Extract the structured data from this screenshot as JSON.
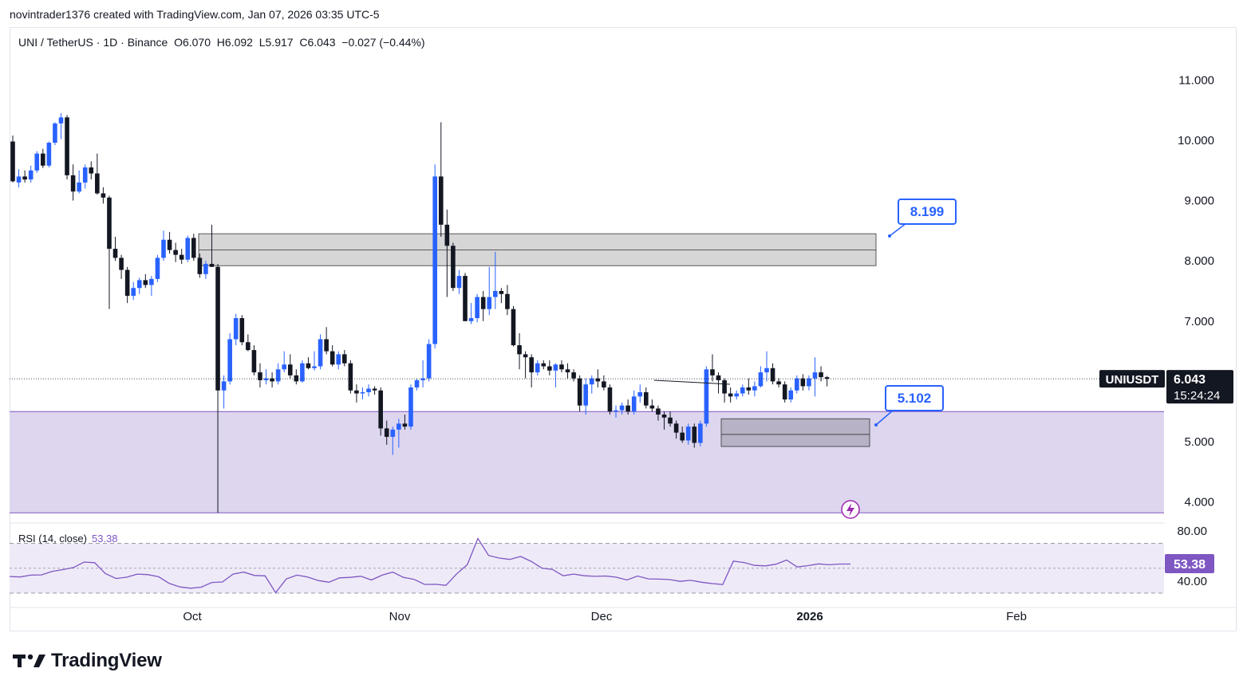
{
  "header": {
    "credit": "novintrader1376 created with TradingView.com, Jan 07, 2026 03:35 UTC-5"
  },
  "symbol": {
    "pair": "UNI / TetherUS",
    "interval": "1D",
    "exchange": "Binance",
    "open": "O6.070",
    "high": "H6.092",
    "low": "L5.917",
    "close": "C6.043",
    "change": "−0.027 (−0.44%)"
  },
  "price_axis": {
    "ticks": [
      "11.000",
      "10.000",
      "9.000",
      "8.000",
      "7.000",
      "5.000",
      "4.000"
    ]
  },
  "last_price": {
    "ticker": "UNIUSDT",
    "price": "6.043",
    "countdown": "15:24:24"
  },
  "annotations": {
    "upper_target": "8.199",
    "lower_target": "5.102"
  },
  "rsi": {
    "label": "RSI (14, close)",
    "value": "53.38",
    "ticks": [
      "80.00",
      "40.00"
    ],
    "values": [
      43.4,
      43.0,
      44.5,
      44.7,
      47.5,
      48.9,
      50.6,
      55.0,
      54.5,
      45.7,
      41.8,
      42.8,
      45.3,
      44.9,
      43.2,
      37.8,
      35.0,
      34.0,
      34.8,
      38.6,
      39.0,
      45.3,
      46.9,
      44.2,
      43.9,
      30.4,
      41.4,
      44.5,
      43.0,
      40.1,
      38.8,
      42.3,
      42.7,
      43.6,
      40.6,
      44.5,
      46.9,
      42.7,
      41.1,
      37.0,
      37.1,
      36.3,
      45.5,
      52.9,
      74.0,
      60.3,
      58.2,
      57.1,
      59.5,
      55.6,
      50.1,
      49.1,
      44.0,
      45.3,
      44.0,
      43.5,
      43.8,
      42.8,
      40.6,
      43.8,
      41.5,
      41.3,
      40.9,
      39.5,
      40.3,
      38.8,
      37.7,
      36.9,
      55.8,
      54.6,
      52.3,
      51.9,
      53.3,
      56.6,
      51.0,
      52.1,
      53.5,
      52.8,
      53.4,
      53.38
    ],
    "color": "#7e57c2"
  },
  "time_axis": {
    "labels": [
      "Oct",
      "Nov",
      "Dec",
      "2026",
      "Feb"
    ]
  },
  "colors": {
    "up": "#2962ff",
    "down": "#131722",
    "zone": "#d1c4e9",
    "rsi_line": "#7e57c2",
    "box": "#b2b5be"
  },
  "chart_data": {
    "type": "candlestick",
    "title": "UNI / TetherUS · 1D · Binance",
    "ylim": [
      3.6,
      11.6
    ],
    "y_ticks": [
      4,
      5,
      7,
      8,
      9,
      10,
      11
    ],
    "x_labels": [
      "Oct",
      "Nov",
      "Dec",
      "2026",
      "Feb"
    ],
    "candles": [
      {
        "o": 9.98,
        "h": 10.08,
        "l": 9.3,
        "c": 9.32
      },
      {
        "o": 9.3,
        "h": 9.52,
        "l": 9.22,
        "c": 9.4
      },
      {
        "o": 9.4,
        "h": 9.5,
        "l": 9.3,
        "c": 9.35
      },
      {
        "o": 9.35,
        "h": 9.58,
        "l": 9.3,
        "c": 9.5
      },
      {
        "o": 9.5,
        "h": 9.82,
        "l": 9.46,
        "c": 9.78
      },
      {
        "o": 9.78,
        "h": 9.86,
        "l": 9.54,
        "c": 9.58
      },
      {
        "o": 9.58,
        "h": 9.98,
        "l": 9.55,
        "c": 9.96
      },
      {
        "o": 9.96,
        "h": 10.3,
        "l": 9.92,
        "c": 10.28
      },
      {
        "o": 10.28,
        "h": 10.45,
        "l": 10.02,
        "c": 10.38
      },
      {
        "o": 10.38,
        "h": 10.42,
        "l": 9.35,
        "c": 9.42
      },
      {
        "o": 9.42,
        "h": 9.6,
        "l": 9.0,
        "c": 9.15
      },
      {
        "o": 9.15,
        "h": 9.5,
        "l": 9.12,
        "c": 9.3
      },
      {
        "o": 9.3,
        "h": 9.6,
        "l": 9.2,
        "c": 9.55
      },
      {
        "o": 9.55,
        "h": 9.65,
        "l": 9.35,
        "c": 9.45
      },
      {
        "o": 9.45,
        "h": 9.78,
        "l": 9.1,
        "c": 9.12
      },
      {
        "o": 9.12,
        "h": 9.22,
        "l": 8.95,
        "c": 9.05
      },
      {
        "o": 9.05,
        "h": 9.08,
        "l": 7.2,
        "c": 8.2
      },
      {
        "o": 8.2,
        "h": 8.4,
        "l": 8.0,
        "c": 8.05
      },
      {
        "o": 8.05,
        "h": 8.1,
        "l": 7.7,
        "c": 7.85
      },
      {
        "o": 7.85,
        "h": 7.9,
        "l": 7.3,
        "c": 7.42
      },
      {
        "o": 7.42,
        "h": 7.65,
        "l": 7.35,
        "c": 7.55
      },
      {
        "o": 7.55,
        "h": 7.72,
        "l": 7.45,
        "c": 7.68
      },
      {
        "o": 7.68,
        "h": 7.78,
        "l": 7.55,
        "c": 7.6
      },
      {
        "o": 7.6,
        "h": 7.75,
        "l": 7.42,
        "c": 7.7
      },
      {
        "o": 7.7,
        "h": 8.1,
        "l": 7.65,
        "c": 8.05
      },
      {
        "o": 8.05,
        "h": 8.5,
        "l": 8.0,
        "c": 8.35
      },
      {
        "o": 8.35,
        "h": 8.48,
        "l": 8.12,
        "c": 8.18
      },
      {
        "o": 8.18,
        "h": 8.3,
        "l": 7.98,
        "c": 8.1
      },
      {
        "o": 8.1,
        "h": 8.2,
        "l": 7.95,
        "c": 8.02
      },
      {
        "o": 8.02,
        "h": 8.42,
        "l": 7.98,
        "c": 8.38
      },
      {
        "o": 8.38,
        "h": 8.45,
        "l": 8.0,
        "c": 8.05
      },
      {
        "o": 8.05,
        "h": 8.12,
        "l": 7.72,
        "c": 7.78
      },
      {
        "o": 7.78,
        "h": 8.0,
        "l": 7.7,
        "c": 7.95
      },
      {
        "o": 7.95,
        "h": 8.6,
        "l": 7.9,
        "c": 7.9
      },
      {
        "o": 7.9,
        "h": 7.95,
        "l": 3.82,
        "c": 5.85
      },
      {
        "o": 5.85,
        "h": 6.1,
        "l": 5.55,
        "c": 6.0
      },
      {
        "o": 6.0,
        "h": 6.8,
        "l": 5.95,
        "c": 6.7
      },
      {
        "o": 6.7,
        "h": 7.12,
        "l": 6.6,
        "c": 7.05
      },
      {
        "o": 7.05,
        "h": 7.1,
        "l": 6.6,
        "c": 6.65
      },
      {
        "o": 6.65,
        "h": 6.78,
        "l": 6.5,
        "c": 6.52
      },
      {
        "o": 6.52,
        "h": 6.6,
        "l": 6.1,
        "c": 6.15
      },
      {
        "o": 6.15,
        "h": 6.3,
        "l": 5.9,
        "c": 6.02
      },
      {
        "o": 6.02,
        "h": 6.2,
        "l": 5.95,
        "c": 6.05
      },
      {
        "o": 6.05,
        "h": 6.15,
        "l": 5.9,
        "c": 6.0
      },
      {
        "o": 6.0,
        "h": 6.3,
        "l": 5.95,
        "c": 6.2
      },
      {
        "o": 6.2,
        "h": 6.5,
        "l": 6.15,
        "c": 6.28
      },
      {
        "o": 6.28,
        "h": 6.45,
        "l": 6.05,
        "c": 6.1
      },
      {
        "o": 6.1,
        "h": 6.2,
        "l": 5.95,
        "c": 6.0
      },
      {
        "o": 6.0,
        "h": 6.35,
        "l": 5.98,
        "c": 6.3
      },
      {
        "o": 6.3,
        "h": 6.4,
        "l": 6.2,
        "c": 6.22
      },
      {
        "o": 6.22,
        "h": 6.5,
        "l": 6.18,
        "c": 6.25
      },
      {
        "o": 6.25,
        "h": 6.78,
        "l": 6.2,
        "c": 6.7
      },
      {
        "o": 6.7,
        "h": 6.9,
        "l": 6.45,
        "c": 6.5
      },
      {
        "o": 6.5,
        "h": 6.6,
        "l": 6.25,
        "c": 6.28
      },
      {
        "o": 6.28,
        "h": 6.5,
        "l": 6.2,
        "c": 6.45
      },
      {
        "o": 6.45,
        "h": 6.52,
        "l": 6.25,
        "c": 6.3
      },
      {
        "o": 6.3,
        "h": 6.35,
        "l": 5.8,
        "c": 5.85
      },
      {
        "o": 5.85,
        "h": 5.95,
        "l": 5.65,
        "c": 5.8
      },
      {
        "o": 5.8,
        "h": 5.9,
        "l": 5.7,
        "c": 5.82
      },
      {
        "o": 5.82,
        "h": 5.95,
        "l": 5.75,
        "c": 5.88
      },
      {
        "o": 5.88,
        "h": 5.92,
        "l": 5.78,
        "c": 5.85
      },
      {
        "o": 5.85,
        "h": 5.9,
        "l": 5.1,
        "c": 5.22
      },
      {
        "o": 5.22,
        "h": 5.35,
        "l": 4.95,
        "c": 5.08
      },
      {
        "o": 5.08,
        "h": 5.25,
        "l": 4.78,
        "c": 5.2
      },
      {
        "o": 5.2,
        "h": 5.38,
        "l": 4.9,
        "c": 5.3
      },
      {
        "o": 5.3,
        "h": 5.45,
        "l": 5.2,
        "c": 5.25
      },
      {
        "o": 5.25,
        "h": 5.95,
        "l": 5.2,
        "c": 5.9
      },
      {
        "o": 5.9,
        "h": 6.05,
        "l": 5.85,
        "c": 6.02
      },
      {
        "o": 6.02,
        "h": 6.35,
        "l": 5.9,
        "c": 6.05
      },
      {
        "o": 6.05,
        "h": 6.7,
        "l": 6.0,
        "c": 6.62
      },
      {
        "o": 6.62,
        "h": 9.6,
        "l": 6.55,
        "c": 9.4
      },
      {
        "o": 9.4,
        "h": 10.3,
        "l": 8.4,
        "c": 8.6
      },
      {
        "o": 8.6,
        "h": 8.85,
        "l": 7.4,
        "c": 8.25
      },
      {
        "o": 8.25,
        "h": 8.3,
        "l": 7.5,
        "c": 7.55
      },
      {
        "o": 7.55,
        "h": 7.85,
        "l": 7.45,
        "c": 7.75
      },
      {
        "o": 7.75,
        "h": 7.8,
        "l": 7.0,
        "c": 7.0
      },
      {
        "o": 7.0,
        "h": 7.3,
        "l": 6.95,
        "c": 7.05
      },
      {
        "o": 7.05,
        "h": 7.45,
        "l": 6.98,
        "c": 7.4
      },
      {
        "o": 7.4,
        "h": 7.5,
        "l": 7.0,
        "c": 7.2
      },
      {
        "o": 7.2,
        "h": 7.9,
        "l": 7.1,
        "c": 7.4
      },
      {
        "o": 7.4,
        "h": 8.15,
        "l": 7.2,
        "c": 7.5
      },
      {
        "o": 7.5,
        "h": 7.55,
        "l": 7.3,
        "c": 7.45
      },
      {
        "o": 7.45,
        "h": 7.6,
        "l": 7.1,
        "c": 7.2
      },
      {
        "o": 7.2,
        "h": 7.25,
        "l": 6.58,
        "c": 6.6
      },
      {
        "o": 6.6,
        "h": 6.8,
        "l": 6.2,
        "c": 6.45
      },
      {
        "o": 6.45,
        "h": 6.5,
        "l": 6.05,
        "c": 6.4
      },
      {
        "o": 6.4,
        "h": 6.45,
        "l": 5.9,
        "c": 6.15
      },
      {
        "o": 6.15,
        "h": 6.35,
        "l": 6.1,
        "c": 6.3
      },
      {
        "o": 6.3,
        "h": 6.35,
        "l": 6.2,
        "c": 6.25
      },
      {
        "o": 6.25,
        "h": 6.35,
        "l": 6.1,
        "c": 6.18
      },
      {
        "o": 6.18,
        "h": 6.3,
        "l": 5.9,
        "c": 6.28
      },
      {
        "o": 6.28,
        "h": 6.35,
        "l": 6.15,
        "c": 6.2
      },
      {
        "o": 6.2,
        "h": 6.3,
        "l": 6.05,
        "c": 6.15
      },
      {
        "o": 6.15,
        "h": 6.2,
        "l": 6.0,
        "c": 6.05
      },
      {
        "o": 6.05,
        "h": 6.1,
        "l": 5.5,
        "c": 5.6
      },
      {
        "o": 5.6,
        "h": 6.05,
        "l": 5.45,
        "c": 5.95
      },
      {
        "o": 5.95,
        "h": 6.1,
        "l": 5.8,
        "c": 6.05
      },
      {
        "o": 6.05,
        "h": 6.2,
        "l": 5.9,
        "c": 6.0
      },
      {
        "o": 6.0,
        "h": 6.1,
        "l": 5.85,
        "c": 5.9
      },
      {
        "o": 5.9,
        "h": 5.95,
        "l": 5.45,
        "c": 5.5
      },
      {
        "o": 5.5,
        "h": 5.6,
        "l": 5.4,
        "c": 5.52
      },
      {
        "o": 5.52,
        "h": 5.65,
        "l": 5.45,
        "c": 5.6
      },
      {
        "o": 5.6,
        "h": 5.7,
        "l": 5.45,
        "c": 5.5
      },
      {
        "o": 5.5,
        "h": 5.85,
        "l": 5.45,
        "c": 5.75
      },
      {
        "o": 5.75,
        "h": 5.95,
        "l": 5.65,
        "c": 5.82
      },
      {
        "o": 5.82,
        "h": 5.9,
        "l": 5.55,
        "c": 5.6
      },
      {
        "o": 5.6,
        "h": 5.7,
        "l": 5.5,
        "c": 5.55
      },
      {
        "o": 5.55,
        "h": 5.6,
        "l": 5.35,
        "c": 5.45
      },
      {
        "o": 5.45,
        "h": 5.5,
        "l": 5.2,
        "c": 5.4
      },
      {
        "o": 5.4,
        "h": 5.5,
        "l": 5.25,
        "c": 5.3
      },
      {
        "o": 5.3,
        "h": 5.35,
        "l": 5.05,
        "c": 5.15
      },
      {
        "o": 5.15,
        "h": 5.25,
        "l": 4.98,
        "c": 5.02
      },
      {
        "o": 5.02,
        "h": 5.3,
        "l": 4.95,
        "c": 5.25
      },
      {
        "o": 5.25,
        "h": 5.3,
        "l": 4.9,
        "c": 4.98
      },
      {
        "o": 4.98,
        "h": 5.35,
        "l": 4.92,
        "c": 5.3
      },
      {
        "o": 5.3,
        "h": 6.25,
        "l": 5.25,
        "c": 6.2
      },
      {
        "o": 6.2,
        "h": 6.45,
        "l": 6.0,
        "c": 6.1
      },
      {
        "o": 6.1,
        "h": 6.15,
        "l": 5.8,
        "c": 6.02
      },
      {
        "o": 6.02,
        "h": 6.05,
        "l": 5.65,
        "c": 5.8
      },
      {
        "o": 5.8,
        "h": 5.9,
        "l": 5.65,
        "c": 5.75
      },
      {
        "o": 5.75,
        "h": 5.85,
        "l": 5.7,
        "c": 5.8
      },
      {
        "o": 5.8,
        "h": 5.95,
        "l": 5.75,
        "c": 5.9
      },
      {
        "o": 5.9,
        "h": 6.05,
        "l": 5.78,
        "c": 5.85
      },
      {
        "o": 5.85,
        "h": 6.0,
        "l": 5.75,
        "c": 5.92
      },
      {
        "o": 5.92,
        "h": 6.25,
        "l": 5.9,
        "c": 6.15
      },
      {
        "o": 6.15,
        "h": 6.5,
        "l": 6.0,
        "c": 6.22
      },
      {
        "o": 6.22,
        "h": 6.3,
        "l": 5.95,
        "c": 6.0
      },
      {
        "o": 6.0,
        "h": 6.05,
        "l": 5.9,
        "c": 5.95
      },
      {
        "o": 5.95,
        "h": 6.0,
        "l": 5.65,
        "c": 5.7
      },
      {
        "o": 5.7,
        "h": 5.9,
        "l": 5.65,
        "c": 5.85
      },
      {
        "o": 5.85,
        "h": 6.1,
        "l": 5.8,
        "c": 6.05
      },
      {
        "o": 6.05,
        "h": 6.12,
        "l": 5.85,
        "c": 5.92
      },
      {
        "o": 5.92,
        "h": 6.1,
        "l": 5.85,
        "c": 6.05
      },
      {
        "o": 6.05,
        "h": 6.4,
        "l": 5.75,
        "c": 6.15
      },
      {
        "o": 6.15,
        "h": 6.25,
        "l": 6.0,
        "c": 6.07
      },
      {
        "o": 6.07,
        "h": 6.09,
        "l": 5.917,
        "c": 6.043
      }
    ],
    "zones": [
      {
        "name": "supply",
        "y0": 7.92,
        "y1": 8.45,
        "midline": 8.18
      },
      {
        "name": "demand-box",
        "y0": 4.92,
        "y1": 5.38,
        "midline": 5.12
      },
      {
        "name": "support-zone",
        "y0": 3.82,
        "y1": 5.5
      }
    ],
    "callouts": [
      {
        "label": "8.199",
        "value": 8.199
      },
      {
        "label": "5.102",
        "value": 5.102
      }
    ],
    "last_close": 6.043,
    "rsi_ylim": [
      20,
      95
    ]
  }
}
